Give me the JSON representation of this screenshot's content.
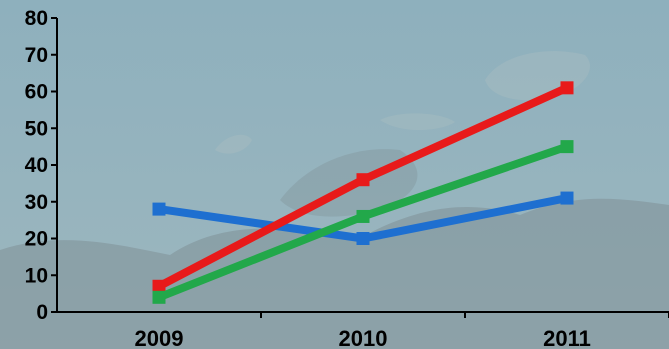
{
  "chart_data": {
    "type": "line",
    "title": "",
    "xlabel": "",
    "ylabel": "",
    "categories": [
      "2009",
      "2010",
      "2011"
    ],
    "ylim": [
      0,
      80
    ],
    "yticks": [
      "0",
      "10",
      "20",
      "30",
      "40",
      "50",
      "60",
      "70",
      "80"
    ],
    "grid": false,
    "legend": "none",
    "series": [
      {
        "color": "#1e6fd0",
        "values": [
          28,
          20,
          31
        ]
      },
      {
        "color": "#e81a1a",
        "values": [
          7,
          36,
          61
        ]
      },
      {
        "color": "#22a84a",
        "values": [
          4,
          26,
          45
        ]
      }
    ]
  },
  "background": {
    "sky_top": "#8eb0bd",
    "sky_bottom": "#9db7bf",
    "rock": "#7f9096",
    "rock_light": "#a9bcc1"
  }
}
